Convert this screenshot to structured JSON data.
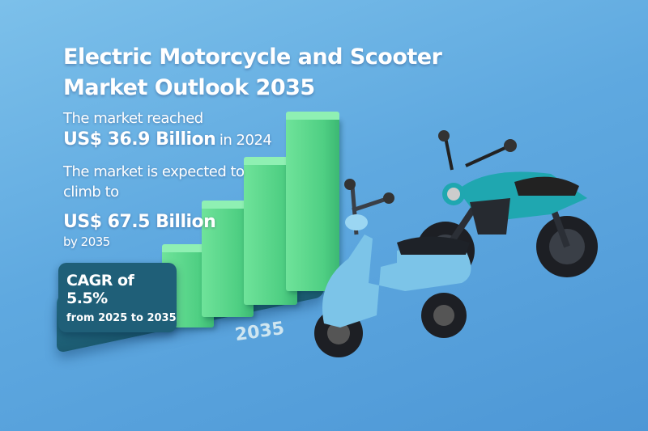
{
  "title": {
    "line1": "Electric Motorcycle and Scooter",
    "line2": "Market Outlook 2035"
  },
  "stats": {
    "reached_label": "The market reached",
    "reached_value": "US$ 36.9 Billion",
    "reached_year": "in 2024",
    "expected_line1": "The market is expected to",
    "expected_line2": "climb to",
    "expected_value": "US$ 67.5 Billion",
    "expected_year": "by 2035"
  },
  "cagr": {
    "value": "CAGR of 5.5%",
    "period": "from 2025 to 2035"
  },
  "platform_label": "2035",
  "colors": {
    "background": "#5fa9e0",
    "bars": "#5bd68a",
    "platform": "#1f5f73",
    "scooter": "#7cc4e8",
    "motorcycle": "#1fa7b0"
  }
}
